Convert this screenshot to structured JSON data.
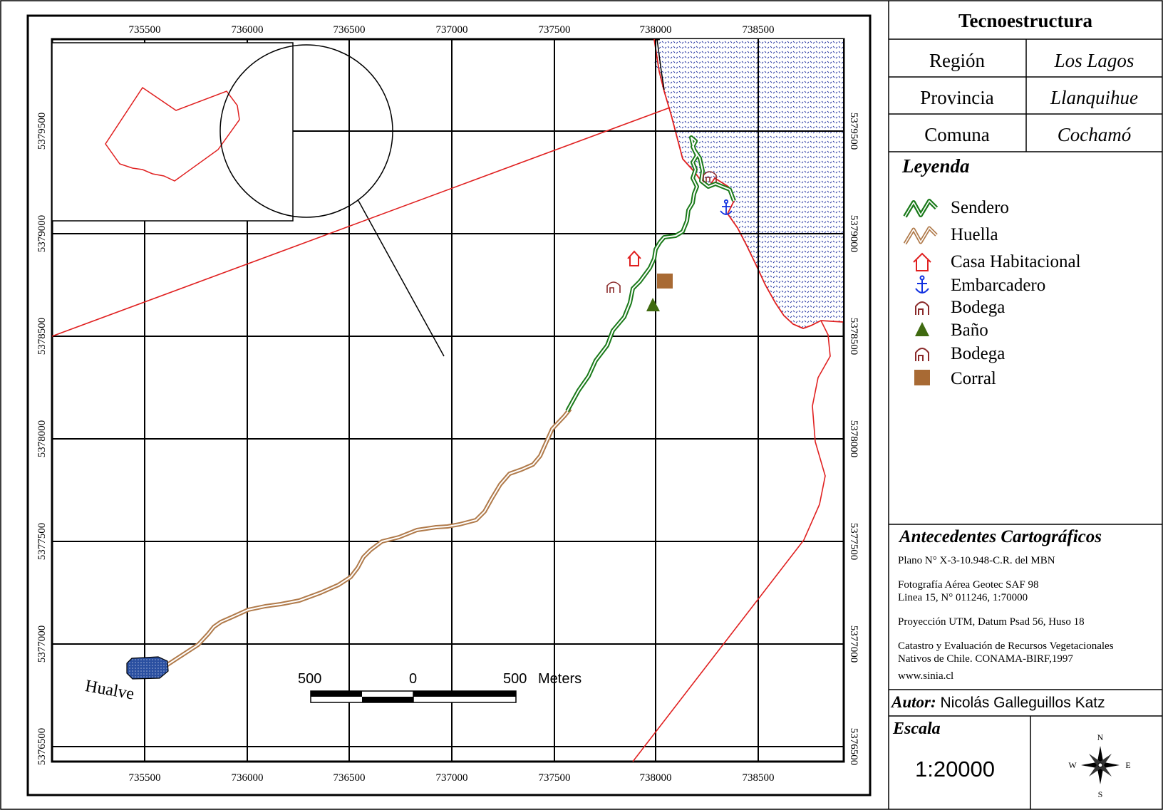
{
  "title": "Tecnoestructura",
  "location": [
    {
      "label": "Región",
      "value": "Los Lagos"
    },
    {
      "label": "Provincia",
      "value": "Llanquihue"
    },
    {
      "label": "Comuna",
      "value": "Cochamó"
    }
  ],
  "legend": {
    "heading": "Leyenda",
    "items": [
      {
        "label": "Sendero",
        "icon": "trail-symbol",
        "color": "#1a7a1a"
      },
      {
        "label": "Huella",
        "icon": "footpath-symbol",
        "color": "#b07a4a"
      },
      {
        "label": "Casa Habitacional",
        "icon": "house-icon",
        "color": "#e02020"
      },
      {
        "label": "Embarcadero",
        "icon": "anchor-icon",
        "color": "#1030e0"
      },
      {
        "label": "Bodega",
        "icon": "storehouse-icon",
        "color": "#8a2a2a"
      },
      {
        "label": "Baño",
        "icon": "triangle-icon",
        "color": "#3f6a10"
      },
      {
        "label": "Bodega",
        "icon": "storehouse-icon",
        "color": "#8a2a2a"
      },
      {
        "label": "Corral",
        "icon": "square-icon",
        "color": "#a86a34"
      }
    ]
  },
  "antecedentes": {
    "heading": "Antecedentes Cartográficos",
    "lines": [
      "Plano N° X-3-10.948-C.R. del MBN",
      "Fotografía Aérea Geotec SAF 98",
      "Linea 15, N° 011246, 1:70000",
      "Proyección UTM, Datum Psad 56, Huso 18",
      "Catastro y Evaluación de Recursos Vegetacionales",
      "Nativos de Chile. CONAMA-BIRF,1997",
      "www.sinia.cl"
    ]
  },
  "autor": {
    "label": "Autor:",
    "name": "Nicolás Galleguillos Katz"
  },
  "escala": {
    "label": "Escala",
    "value": "1:20000"
  },
  "compass": {
    "n": "N",
    "s": "S",
    "e": "E",
    "w": "W"
  },
  "map": {
    "x_ticks": [
      "735500",
      "736000",
      "736500",
      "737000",
      "737500",
      "738000",
      "738500"
    ],
    "y_ticks": [
      "5379500",
      "5379000",
      "5378500",
      "5378000",
      "5377500",
      "5377000",
      "5376500"
    ],
    "place_label": "Hualve",
    "scale_bar": {
      "left": "500",
      "mid": "0",
      "right": "500",
      "unit": "Meters"
    },
    "colors": {
      "trail": "#1a7a1a",
      "footpath": "#b07a4a",
      "boundary": "#e02020",
      "water": "#1a2a9a",
      "lake": "#1f3f8a"
    }
  }
}
